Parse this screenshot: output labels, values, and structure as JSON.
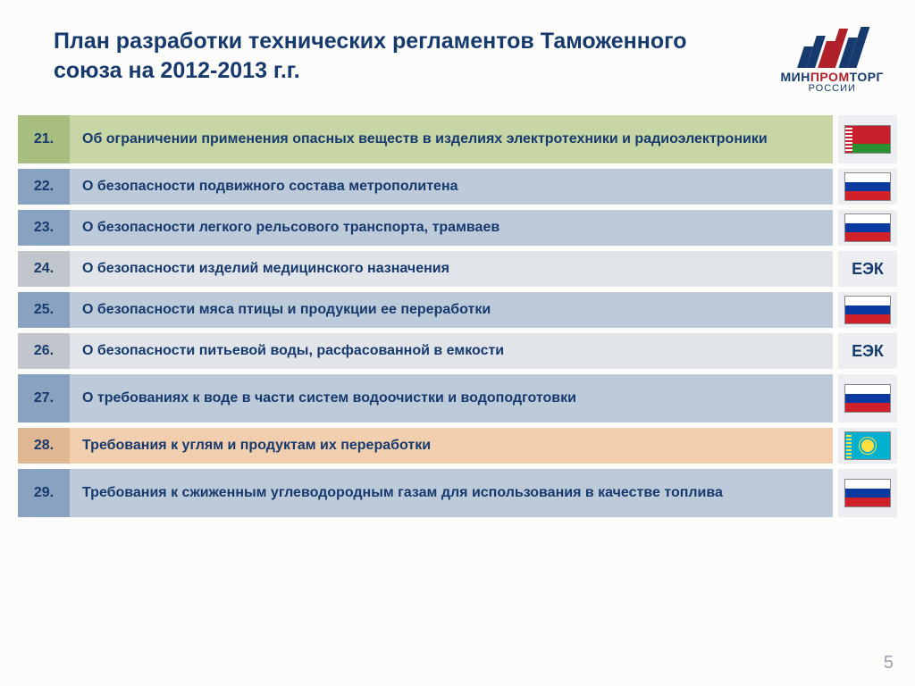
{
  "title": "План разработки технических регламентов Таможенного союза на 2012-2013 г.г.",
  "logo": {
    "line1a": "МИН",
    "line1b": "ПРОМ",
    "line1c": "ТОРГ",
    "line2": "РОССИИ"
  },
  "rows": [
    {
      "num": "21.",
      "text": "Об ограничении применения опасных веществ в изделиях электротехники и радиоэлектроники",
      "style": "green",
      "flag": "by"
    },
    {
      "num": "22.",
      "text": "О безопасности подвижного состава метрополитена",
      "style": "blue",
      "flag": "ru"
    },
    {
      "num": "23.",
      "text": "О безопасности легкого рельсового транспорта, трамваев",
      "style": "blue",
      "flag": "ru"
    },
    {
      "num": "24.",
      "text": "О безопасности изделий медицинского назначения",
      "style": "gray",
      "flag": "eek"
    },
    {
      "num": "25.",
      "text": "О безопасности мяса птицы и продукции ее переработки",
      "style": "blue",
      "flag": "ru"
    },
    {
      "num": "26.",
      "text": "О безопасности питьевой воды, расфасованной в емкости",
      "style": "gray",
      "flag": "eek"
    },
    {
      "num": "27.",
      "text": "О требованиях к воде в части систем водоочистки и водоподготовки",
      "style": "blue",
      "flag": "ru"
    },
    {
      "num": "28.",
      "text": "Требования к углям и продуктам их переработки",
      "style": "tan",
      "flag": "kz"
    },
    {
      "num": "29.",
      "text": "Требования к сжиженным углеводородным газам для использования в качестве топлива",
      "style": "blue",
      "flag": "ru"
    }
  ],
  "eek_label": "ЕЭК",
  "page_number": "5",
  "colors": {
    "title": "#163a6d",
    "green_num": "#a8bd80",
    "green_desc": "#c8d6a6",
    "blue_num": "#88a2bf",
    "blue_desc": "#bccad9",
    "gray_num": "#c0c6cc",
    "gray_desc": "#e1e4e8",
    "tan_num": "#dfb893",
    "tan_desc": "#f1ceae",
    "flag_cell": "#eceef2",
    "logo_bars": [
      "#163a6d",
      "#163a6d",
      "#b0202a",
      "#b0202a",
      "#163a6d",
      "#163a6d"
    ]
  },
  "row_heights": {
    "tall": 54,
    "short": 40
  }
}
